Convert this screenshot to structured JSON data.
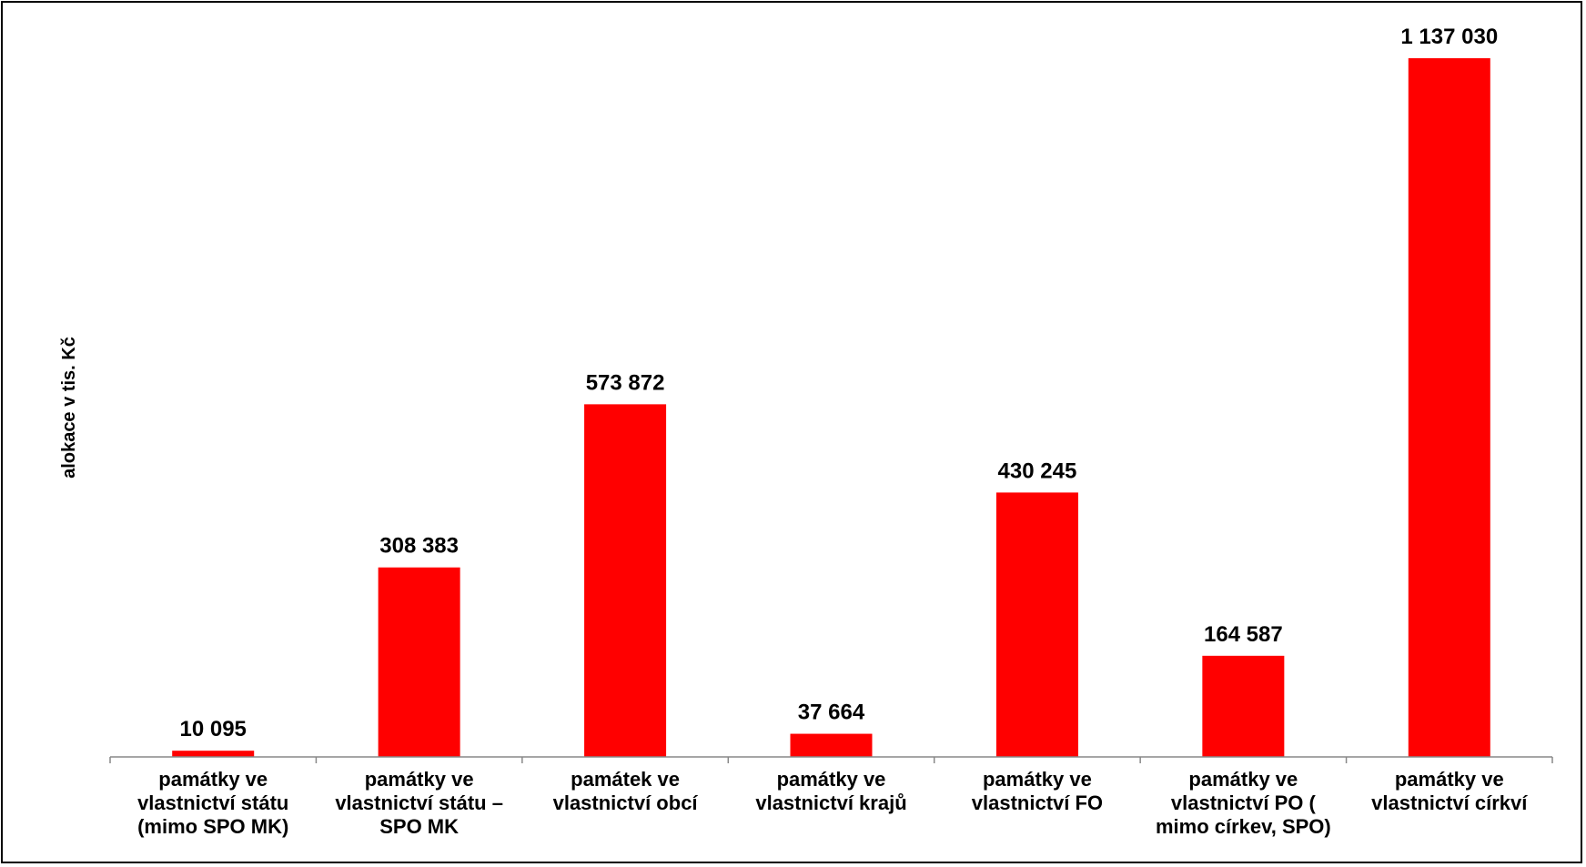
{
  "chart_data": {
    "type": "bar",
    "ylabel": "alokace v tis. Kč",
    "categories": [
      [
        "památky ve",
        "vlastnictví státu",
        "(mimo SPO MK)"
      ],
      [
        "památky ve",
        "vlastnictví státu –",
        "SPO MK"
      ],
      [
        "památek ve",
        "vlastnictví obcí"
      ],
      [
        "památky ve",
        "vlastnictví krajů"
      ],
      [
        "památky ve",
        "vlastnictví FO"
      ],
      [
        "památky ve",
        "vlastnictví PO (",
        "mimo církev, SPO)"
      ],
      [
        "památky ve",
        "vlastnictví církví"
      ]
    ],
    "values": [
      10095,
      308383,
      573872,
      37664,
      430245,
      164587,
      1137030
    ],
    "value_labels": [
      "10 095",
      "308 383",
      "573 872",
      "37 664",
      "430 245",
      "164 587",
      "1 137 030"
    ],
    "ylim": [
      0,
      1137030
    ],
    "bar_color": "#ff0000",
    "grid": false,
    "legend": false
  }
}
